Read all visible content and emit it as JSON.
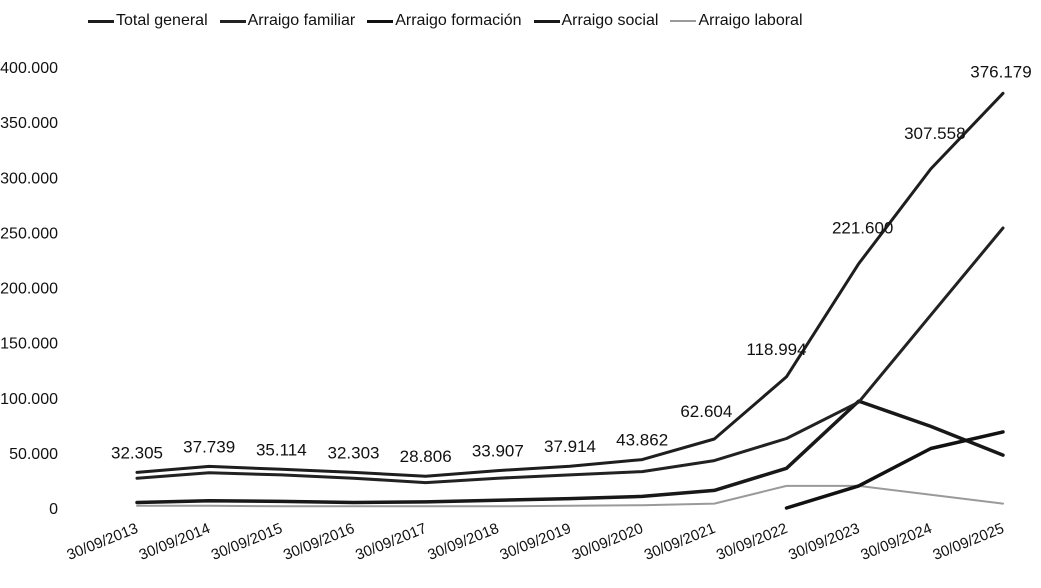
{
  "chart_data": {
    "type": "line",
    "categories": [
      "30/09/2013",
      "30/09/2014",
      "30/09/2015",
      "30/09/2016",
      "30/09/2017",
      "30/09/2018",
      "30/09/2019",
      "30/09/2020",
      "30/09/2021",
      "30/09/2022",
      "30/09/2023",
      "30/09/2024",
      "30/09/2025"
    ],
    "ylim": [
      0,
      400000
    ],
    "y_ticks": [
      0,
      50000,
      100000,
      150000,
      200000,
      250000,
      300000,
      350000,
      400000
    ],
    "y_tick_labels": [
      "0",
      "50.000",
      "100.000",
      "150.000",
      "200.000",
      "250.000",
      "300.000",
      "350.000",
      "400.000"
    ],
    "grid": false,
    "legend_position": "top",
    "series": [
      {
        "name": "Total general",
        "color": "#1e1e1e",
        "width": 3,
        "values": [
          32305,
          37739,
          35114,
          32303,
          28806,
          33907,
          37914,
          43862,
          62604,
          118994,
          221600,
          307558,
          376179
        ],
        "labels": [
          "32.305",
          "37.739",
          "35.114",
          "32.303",
          "28.806",
          "33.907",
          "37.914",
          "43.862",
          "62.604",
          "118.994",
          "221.600",
          "307.558",
          "376.179"
        ]
      },
      {
        "name": "Arraigo familiar",
        "color": "#222222",
        "width": 3,
        "values": [
          27000,
          32000,
          30000,
          27000,
          23000,
          27000,
          30000,
          33000,
          43000,
          63000,
          96000,
          175000,
          254000
        ]
      },
      {
        "name": "Arraigo formación",
        "color": "#111111",
        "width": 3.5,
        "values": [
          null,
          null,
          null,
          null,
          null,
          null,
          null,
          null,
          null,
          0,
          20000,
          54000,
          69000
        ]
      },
      {
        "name": "Arraigo social",
        "color": "#181818",
        "width": 3.5,
        "values": [
          5000,
          6500,
          6000,
          5000,
          5500,
          7000,
          8500,
          10500,
          16000,
          36000,
          97000,
          74000,
          48000
        ]
      },
      {
        "name": "Arraigo laboral",
        "color": "#9a9a9a",
        "width": 2,
        "values": [
          2000,
          2000,
          1500,
          1500,
          1500,
          1500,
          2000,
          2500,
          4000,
          20000,
          20000,
          12000,
          4000
        ]
      }
    ]
  }
}
